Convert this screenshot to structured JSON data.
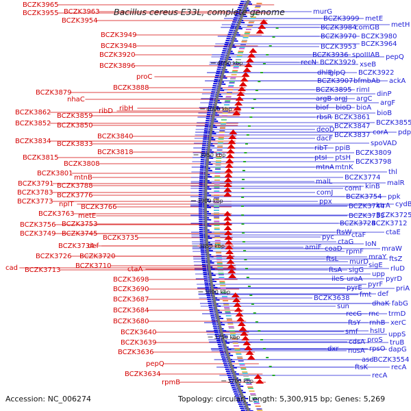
{
  "title": "Bacillus cereus E33L, complete genome",
  "accession": "Accession: NC_006274",
  "summary": "Topology: circular; Length: 5,300,915 bp; Genes: 5,269",
  "ticks": [
    {
      "label": "4050 kbp",
      "y": 92
    },
    {
      "label": "4000 kbp",
      "y": 159
    },
    {
      "label": "3950 kbp",
      "y": 226
    },
    {
      "label": "3900 kbp",
      "y": 293
    },
    {
      "label": "3850 kbp",
      "y": 359
    },
    {
      "label": "3800 kbp",
      "y": 426
    },
    {
      "label": "3750 kbp",
      "y": 492
    },
    {
      "label": "3700 kbp",
      "y": 556
    }
  ],
  "colors": {
    "forward": "#e00000",
    "reverse": "#1010e0",
    "backbone": "#777777",
    "cds": "#22aa22"
  },
  "left_labels": [
    [
      "BCZK3965",
      33,
      10
    ],
    [
      "BCZK3955",
      33,
      22
    ],
    [
      "BCZK3963",
      93,
      20
    ],
    [
      "BCZK3954",
      90,
      33
    ],
    [
      "BCZK3949",
      147,
      54
    ],
    [
      "BCZK3948",
      147,
      70
    ],
    [
      "BCZK3920",
      145,
      83
    ],
    [
      "BCZK3896",
      145,
      99
    ],
    [
      "proC",
      199,
      115
    ],
    [
      "BCZK3888",
      165,
      131
    ],
    [
      "BCZK3879",
      52,
      138
    ],
    [
      "nhaC",
      98,
      148
    ],
    [
      "ribD",
      144,
      165
    ],
    [
      "ribH",
      174,
      161
    ],
    [
      "BCZK3862",
      22,
      167
    ],
    [
      "BCZK3859",
      83,
      172
    ],
    [
      "BCZK3852",
      22,
      183
    ],
    [
      "BCZK3850",
      83,
      186
    ],
    [
      "BCZK3840",
      142,
      202
    ],
    [
      "BCZK3834",
      22,
      209
    ],
    [
      "BCZK3833",
      83,
      213
    ],
    [
      "BCZK3818",
      142,
      225
    ],
    [
      "BCZK3815",
      33,
      233
    ],
    [
      "BCZK3808",
      93,
      242
    ],
    [
      "BCZK3801",
      54,
      256
    ],
    [
      "mtnB",
      108,
      262
    ],
    [
      "BCZK3791",
      26,
      271
    ],
    [
      "BCZK3788",
      83,
      274
    ],
    [
      "BCZK3783",
      25,
      284
    ],
    [
      "BCZK3776",
      83,
      288
    ],
    [
      "BCZK3773",
      25,
      297
    ],
    [
      "nplT",
      86,
      301
    ],
    [
      "BCZK3766",
      118,
      305
    ],
    [
      "BCZK3763",
      56,
      315
    ],
    [
      "metE",
      114,
      318
    ],
    [
      "BCZK3756",
      29,
      331
    ],
    [
      "BCZK3753",
      90,
      330
    ],
    [
      "BCZK3749",
      29,
      344
    ],
    [
      "BCZK3745",
      90,
      344
    ],
    [
      "BCZK3735",
      150,
      350
    ],
    [
      "BCZK3734",
      85,
      362
    ],
    [
      "def",
      128,
      362
    ],
    [
      "BCZK3726",
      52,
      377
    ],
    [
      "BCZK3720",
      116,
      377
    ],
    [
      "BCZK3710",
      110,
      391
    ],
    [
      "cad",
      8,
      394
    ],
    [
      "BCZK3713",
      36,
      397
    ],
    [
      "ctaA",
      186,
      396
    ],
    [
      "BCZK3698",
      165,
      411
    ],
    [
      "BCZK3690",
      165,
      425
    ],
    [
      "BCZK3687",
      165,
      440
    ],
    [
      "BCZK3684",
      165,
      456
    ],
    [
      "BCZK3680",
      165,
      472
    ],
    [
      "BCZK3640",
      176,
      488
    ],
    [
      "BCZK3639",
      176,
      503
    ],
    [
      "BCZK3636",
      172,
      517
    ],
    [
      "pepQ",
      213,
      534
    ],
    [
      "BCZK3634",
      182,
      549
    ],
    [
      "rpmB",
      236,
      561
    ]
  ],
  "right_labels": [
    [
      "murG",
      457,
      20
    ],
    [
      "BCZK3999",
      472,
      30
    ],
    [
      "metE",
      533,
      30
    ],
    [
      "BCZK3984",
      468,
      43
    ],
    [
      "comGB",
      518,
      43
    ],
    [
      "metH",
      571,
      39
    ],
    [
      "BCZK3970",
      468,
      56
    ],
    [
      "BCZK3980",
      527,
      56
    ],
    [
      "BCZK3953",
      468,
      71
    ],
    [
      "BCZK3964",
      527,
      67
    ],
    [
      "BCZK3936",
      456,
      83
    ],
    [
      "spoIIIAB",
      514,
      83
    ],
    [
      "pepQ",
      563,
      86
    ],
    [
      "recN",
      439,
      94
    ],
    [
      "BCZK3929",
      467,
      94
    ],
    [
      "xseB",
      525,
      97
    ],
    [
      "dhlE",
      463,
      109
    ],
    [
      "glpQ",
      481,
      109
    ],
    [
      "BCZK3922",
      523,
      109
    ],
    [
      "BCZK3907",
      463,
      121
    ],
    [
      "bfmbAb",
      516,
      121
    ],
    [
      "ackA",
      568,
      121
    ],
    [
      "BCZK3895",
      461,
      134
    ],
    [
      "rimI",
      520,
      134
    ],
    [
      "dinP",
      550,
      140
    ],
    [
      "argB",
      461,
      147
    ],
    [
      "argJ",
      488,
      147
    ],
    [
      "argC",
      520,
      147
    ],
    [
      "argF",
      555,
      153
    ],
    [
      "biof",
      461,
      160
    ],
    [
      "bioD",
      490,
      160
    ],
    [
      "bioA",
      520,
      160
    ],
    [
      "bioB",
      550,
      168
    ],
    [
      "rbsR",
      462,
      174
    ],
    [
      "BCZK3861",
      488,
      174
    ],
    [
      "BCZK3855",
      549,
      182
    ],
    [
      "BCZK3847",
      488,
      187
    ],
    [
      "deoD",
      462,
      192
    ],
    [
      "corA",
      544,
      196
    ],
    [
      "pdp",
      581,
      196
    ],
    [
      "BCZK3837",
      488,
      200
    ],
    [
      "dacF",
      462,
      205
    ],
    [
      "spoVAD",
      541,
      212
    ],
    [
      "ribT",
      459,
      219
    ],
    [
      "ppiB",
      489,
      219
    ],
    [
      "BCZK3809",
      519,
      226
    ],
    [
      "ptsI",
      459,
      233
    ],
    [
      "ptsH",
      489,
      233
    ],
    [
      "BCZK3798",
      519,
      239
    ],
    [
      "thl",
      567,
      254
    ],
    [
      "mtnA",
      461,
      247
    ],
    [
      "mtnK",
      489,
      247
    ],
    [
      "BCZK3774",
      503,
      262
    ],
    [
      "malR",
      565,
      270
    ],
    [
      "malL",
      461,
      268
    ],
    [
      "comI",
      503,
      278
    ],
    [
      "kinB",
      533,
      275
    ],
    [
      "comJ",
      462,
      284
    ],
    [
      "ppk",
      566,
      290
    ],
    [
      "ppx",
      466,
      297
    ],
    [
      "BCZK3754",
      505,
      290
    ],
    [
      "cydB",
      577,
      301
    ],
    [
      "BCZK3744",
      509,
      304
    ],
    [
      "ktrA",
      549,
      303
    ],
    [
      "BCZK3733",
      509,
      318
    ],
    [
      "BCZK3725",
      549,
      317
    ],
    [
      "BCZK3724",
      496,
      329
    ],
    [
      "BCZK3712",
      542,
      329
    ],
    [
      "ctaE",
      563,
      342
    ],
    [
      "ftsW",
      491,
      342
    ],
    [
      "pyc",
      470,
      349
    ],
    [
      "ctaF",
      513,
      346
    ],
    [
      "ctaG",
      493,
      356
    ],
    [
      "IoN",
      533,
      359
    ],
    [
      "amiF",
      445,
      364
    ],
    [
      "coaD",
      474,
      366
    ],
    [
      "rpmF",
      505,
      370
    ],
    [
      "mraW",
      557,
      366
    ],
    [
      "ftsL",
      476,
      381
    ],
    [
      "murD",
      510,
      385
    ],
    [
      "mraY",
      538,
      378
    ],
    [
      "ftsZ",
      568,
      381
    ],
    [
      "sigE",
      538,
      390
    ],
    [
      "rluD",
      570,
      395
    ],
    [
      "ftsA",
      480,
      397
    ],
    [
      "sigG",
      509,
      397
    ],
    [
      "upp",
      543,
      403
    ],
    [
      "ileS",
      484,
      410
    ],
    [
      "uraA",
      506,
      410
    ],
    [
      "pyrD",
      563,
      410
    ],
    [
      "pyrF",
      537,
      418
    ],
    [
      "pyrE",
      506,
      423
    ],
    [
      "priA",
      578,
      424
    ],
    [
      "fmt",
      525,
      433
    ],
    [
      "def",
      551,
      432
    ],
    [
      "BCZK3638",
      458,
      438
    ],
    [
      "sun",
      492,
      450
    ],
    [
      "dhaK",
      543,
      446
    ],
    [
      "fabG",
      572,
      446
    ],
    [
      "recG",
      505,
      461
    ],
    [
      "rnc",
      538,
      461
    ],
    [
      "trmD",
      567,
      461
    ],
    [
      "ftsY",
      508,
      474
    ],
    [
      "rnhB",
      539,
      474
    ],
    [
      "xerC",
      570,
      474
    ],
    [
      "smf",
      504,
      487
    ],
    [
      "hsIU",
      540,
      486
    ],
    [
      "uppS",
      567,
      491
    ],
    [
      "cdsA",
      509,
      502
    ],
    [
      "proS",
      536,
      499
    ],
    [
      "truB",
      569,
      503
    ],
    [
      "dxr",
      478,
      512
    ],
    [
      "nusA",
      508,
      515
    ],
    [
      "rpsO",
      539,
      512
    ],
    [
      "dapG",
      567,
      513
    ],
    [
      "asd",
      528,
      528
    ],
    [
      "BCZK3554",
      545,
      528
    ],
    [
      "ftsK",
      518,
      539
    ],
    [
      "recA",
      571,
      539
    ],
    [
      "recA",
      543,
      551
    ]
  ]
}
